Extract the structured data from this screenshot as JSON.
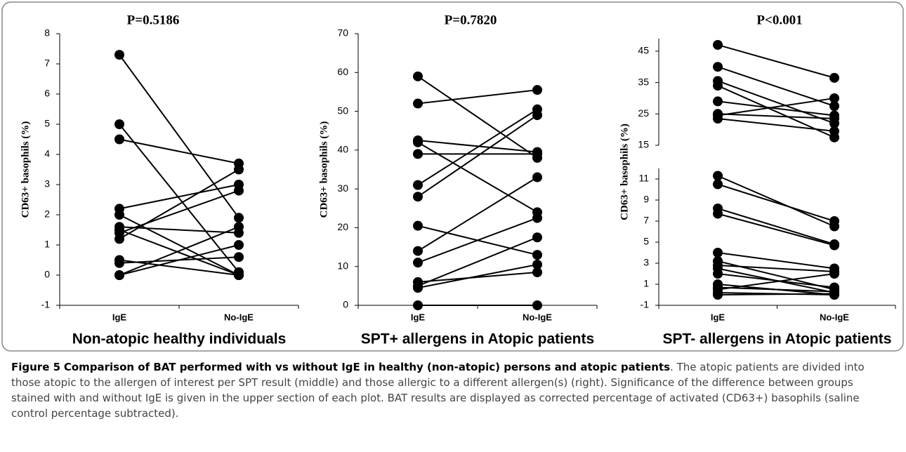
{
  "chart_data": [
    {
      "type": "line",
      "title": "P=0.5186",
      "xlabel": "Non-atopic healthy individuals",
      "ylabel": "CD63+ basophils (%)",
      "categories": [
        "IgE",
        "No-IgE"
      ],
      "color": "#000000",
      "ylim": [
        -1,
        8
      ],
      "yticks": [
        -1,
        0,
        1,
        2,
        3,
        4,
        5,
        6,
        7,
        8
      ],
      "series": [
        {
          "values": [
            7.3,
            1.9
          ]
        },
        {
          "values": [
            5.0,
            0.1
          ]
        },
        {
          "values": [
            4.5,
            3.7
          ]
        },
        {
          "values": [
            2.2,
            3.0
          ]
        },
        {
          "values": [
            2.0,
            0.0
          ]
        },
        {
          "values": [
            1.6,
            1.4
          ]
        },
        {
          "values": [
            1.5,
            0.0
          ]
        },
        {
          "values": [
            1.4,
            2.8
          ]
        },
        {
          "values": [
            1.2,
            3.5
          ]
        },
        {
          "values": [
            0.5,
            0.0
          ]
        },
        {
          "values": [
            0.4,
            0.6
          ]
        },
        {
          "values": [
            0.0,
            1.6
          ]
        },
        {
          "values": [
            0.0,
            1.0
          ]
        }
      ]
    },
    {
      "type": "line",
      "title": "P=0.7820",
      "xlabel": "SPT+ allergens in Atopic patients",
      "ylabel": "CD63+ basophils (%)",
      "categories": [
        "IgE",
        "No-IgE"
      ],
      "color": "#000000",
      "ylim": [
        0,
        70
      ],
      "yticks": [
        0,
        10,
        20,
        30,
        40,
        50,
        60,
        70
      ],
      "series": [
        {
          "values": [
            59,
            38
          ]
        },
        {
          "values": [
            52,
            55.5
          ]
        },
        {
          "values": [
            42.5,
            39.5
          ]
        },
        {
          "values": [
            42,
            24
          ]
        },
        {
          "values": [
            39,
            39
          ]
        },
        {
          "values": [
            31,
            50.5
          ]
        },
        {
          "values": [
            28,
            49
          ]
        },
        {
          "values": [
            20.5,
            13
          ]
        },
        {
          "values": [
            14,
            33
          ]
        },
        {
          "values": [
            11,
            22.5
          ]
        },
        {
          "values": [
            6,
            8.5
          ]
        },
        {
          "values": [
            5,
            17.5
          ]
        },
        {
          "values": [
            4.5,
            10.5
          ]
        },
        {
          "values": [
            0,
            0
          ]
        }
      ]
    },
    {
      "type": "line",
      "title": "P<0.001",
      "xlabel": "SPT- allergens in Atopic patients",
      "ylabel": "CD63+ basophils (%)",
      "categories": [
        "IgE",
        "No-IgE"
      ],
      "color": "#000000",
      "y_segments": [
        {
          "ylim": [
            15,
            49
          ],
          "yticks": [
            15,
            25,
            35,
            45
          ]
        },
        {
          "ylim": [
            -1,
            12
          ],
          "yticks": [
            -1,
            1,
            3,
            5,
            7,
            9,
            11
          ]
        }
      ],
      "series": [
        {
          "values": [
            47,
            36.5
          ]
        },
        {
          "values": [
            40,
            27.5
          ]
        },
        {
          "values": [
            35.5,
            22
          ]
        },
        {
          "values": [
            34,
            17.5
          ]
        },
        {
          "values": [
            29,
            24.5
          ]
        },
        {
          "values": [
            25,
            23.5
          ]
        },
        {
          "values": [
            24.5,
            30
          ]
        },
        {
          "values": [
            23.5,
            19.5
          ]
        },
        {
          "values": [
            11.3,
            6.5
          ]
        },
        {
          "values": [
            10.5,
            7
          ]
        },
        {
          "values": [
            8.2,
            4.8
          ]
        },
        {
          "values": [
            7.7,
            4.7
          ]
        },
        {
          "values": [
            4,
            2.5
          ]
        },
        {
          "values": [
            3.2,
            0.5
          ]
        },
        {
          "values": [
            2.8,
            2.2
          ]
        },
        {
          "values": [
            2.5,
            0.2
          ]
        },
        {
          "values": [
            2,
            0.7
          ]
        },
        {
          "values": [
            1,
            0
          ]
        },
        {
          "values": [
            0.7,
            0.3
          ]
        },
        {
          "values": [
            0.5,
            2
          ]
        },
        {
          "values": [
            0.2,
            0
          ]
        },
        {
          "values": [
            0,
            0.1
          ]
        }
      ]
    }
  ],
  "caption": {
    "label": "Figure 5",
    "title": "Comparison of BAT performed with vs without IgE in healthy (non-atopic) persons and atopic patients",
    "text": ". The atopic patients are divided into those atopic to the allergen of interest per SPT result (middle) and those allergic to a different allergen(s) (right). Significance of the difference between groups stained with and without IgE is given in the upper section of each plot. BAT results are displayed as corrected percentage of activated (CD63+) basophils (saline control percentage subtracted)."
  }
}
